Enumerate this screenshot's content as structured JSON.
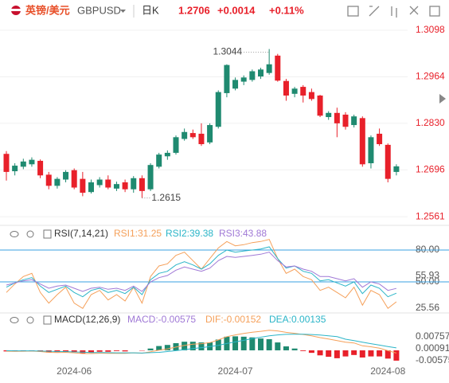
{
  "header": {
    "pair_cn": "英镑/美元",
    "symbol": "GBPUSD",
    "period": "日K",
    "price": "1.2706",
    "change": "+0.0014",
    "change_pct": "+0.11%"
  },
  "chart_data": [
    {
      "type": "candlestick",
      "up_color": "#1f8a70",
      "down_color": "#e8202a",
      "grid": true,
      "categories": [
        null,
        null,
        null,
        null,
        null,
        null,
        null,
        null,
        "2024-06",
        null,
        null,
        null,
        null,
        null,
        null,
        null,
        null,
        null,
        null,
        null,
        null,
        null,
        null,
        null,
        null,
        null,
        null,
        "2024-07",
        null,
        null,
        null,
        null,
        null,
        null,
        null,
        null,
        null,
        null,
        null,
        null,
        null,
        null,
        null,
        null,
        null,
        "2024-08",
        null
      ],
      "open": [
        1.2742,
        1.2692,
        1.2705,
        1.2712,
        1.2722,
        1.2682,
        1.265,
        1.2668,
        1.2695,
        1.267,
        1.2632,
        1.2652,
        1.2668,
        1.2642,
        1.266,
        1.264,
        1.2672,
        1.264,
        1.2705,
        1.2735,
        1.2745,
        1.2785,
        1.2802,
        1.28,
        1.2775,
        1.282,
        1.2917,
        1.293,
        1.295,
        1.2955,
        1.2965,
        1.2975,
        1.3025,
        1.2952,
        1.2915,
        1.2935,
        1.292,
        1.291,
        1.2848,
        1.286,
        1.2855,
        1.2825,
        1.2845,
        1.2715,
        1.28,
        1.2768,
        1.269
      ],
      "high": [
        1.275,
        1.2715,
        1.2728,
        1.2732,
        1.2726,
        1.269,
        1.2675,
        1.2695,
        1.27,
        1.269,
        1.2668,
        1.2675,
        1.268,
        1.2662,
        1.2668,
        1.2678,
        1.268,
        1.2715,
        1.2745,
        1.2752,
        1.2795,
        1.2815,
        1.2812,
        1.283,
        1.283,
        1.2925,
        1.3,
        1.2962,
        1.2968,
        1.2985,
        1.299,
        1.3044,
        1.303,
        1.2958,
        1.2935,
        1.294,
        1.293,
        1.2912,
        1.2865,
        1.2875,
        1.2862,
        1.2855,
        1.285,
        1.2795,
        1.2815,
        1.2772,
        1.2712
      ],
      "low": [
        1.2665,
        1.268,
        1.2698,
        1.2705,
        1.2672,
        1.264,
        1.2642,
        1.266,
        1.264,
        1.262,
        1.2628,
        1.2645,
        1.264,
        1.2635,
        1.2632,
        1.263,
        1.2615,
        1.2635,
        1.27,
        1.2725,
        1.274,
        1.278,
        1.2785,
        1.2765,
        1.277,
        1.2815,
        1.2905,
        1.2925,
        1.294,
        1.295,
        1.2958,
        1.297,
        1.295,
        1.2895,
        1.2905,
        1.289,
        1.2895,
        1.2848,
        1.284,
        1.279,
        1.2812,
        1.2818,
        1.2705,
        1.27,
        1.2765,
        1.266,
        1.268
      ],
      "close": [
        1.269,
        1.2708,
        1.272,
        1.2725,
        1.268,
        1.265,
        1.267,
        1.269,
        1.2645,
        1.263,
        1.266,
        1.2668,
        1.2645,
        1.2655,
        1.264,
        1.2672,
        1.2635,
        1.271,
        1.274,
        1.2745,
        1.279,
        1.2805,
        1.279,
        1.277,
        1.2825,
        1.292,
        1.2998,
        1.2955,
        1.2962,
        1.298,
        1.2985,
        1.3,
        1.2953,
        1.291,
        1.293,
        1.291,
        1.29,
        1.2852,
        1.286,
        1.283,
        1.282,
        1.285,
        1.2712,
        1.279,
        1.277,
        1.267,
        1.2706
      ],
      "ylim": [
        1.2543,
        1.3121
      ],
      "yticks": [
        1.3098,
        1.2964,
        {
          "value": 1.283,
          "label": "1.2830"
        },
        1.2696,
        1.2561
      ]
    },
    {
      "type": "line",
      "title": "RSI(7,14,21)",
      "grid": false,
      "hlines": [
        80,
        50
      ],
      "hline_color": "#3aa0e0",
      "series": [
        {
          "name": "RSI1:31.25",
          "color": "#f5a05a",
          "values": [
            40,
            48,
            55,
            58,
            40,
            30,
            38,
            45,
            30,
            25,
            38,
            42,
            33,
            38,
            32,
            45,
            30,
            55,
            65,
            67,
            75,
            78,
            70,
            62,
            72,
            82,
            88,
            84,
            85,
            87,
            88,
            90,
            72,
            58,
            62,
            55,
            52,
            42,
            45,
            40,
            35,
            45,
            28,
            42,
            38,
            25,
            31.25
          ]
        },
        {
          "name": "RSI2:39.38",
          "color": "#2bb5c8",
          "values": [
            45,
            49,
            52,
            54,
            46,
            40,
            43,
            46,
            40,
            36,
            42,
            44,
            40,
            42,
            39,
            45,
            38,
            52,
            58,
            60,
            66,
            69,
            66,
            62,
            67,
            75,
            80,
            78,
            79,
            80,
            81,
            83,
            72,
            63,
            65,
            60,
            58,
            51,
            52,
            49,
            46,
            50,
            39,
            47,
            44,
            36,
            39.38
          ]
        },
        {
          "name": "RSI3:43.88",
          "color": "#a079d6",
          "values": [
            47,
            49,
            51,
            52,
            48,
            44,
            46,
            47,
            44,
            41,
            44,
            45,
            43,
            44,
            42,
            46,
            41,
            50,
            54,
            56,
            61,
            64,
            62,
            60,
            63,
            70,
            74,
            73,
            74,
            75,
            76,
            78,
            70,
            64,
            65,
            62,
            60,
            55,
            55,
            53,
            51,
            53,
            45,
            50,
            48,
            42,
            43.88
          ]
        }
      ],
      "ylim": [
        21.5,
        90.5
      ],
      "yticks": [
        {
          "value": 80,
          "label": "80.00"
        },
        55.93,
        {
          "value": 50,
          "label": "50.00"
        },
        25.56
      ]
    },
    {
      "type": "macd",
      "title": "MACD(12,26,9)",
      "grid": false,
      "up_color": "#1f8a70",
      "down_color": "#e8202a",
      "series": [
        {
          "name": "MACD:-0.00575",
          "color": "#a079d6",
          "values": [
            -0.0006,
            -0.0006,
            -0.0004,
            -0.0002,
            -0.0006,
            -0.0012,
            -0.001,
            -0.0008,
            -0.001,
            -0.0016,
            -0.0012,
            -0.0008,
            -0.0008,
            -0.0004,
            -0.0006,
            0,
            -0.0002,
            0.001,
            0.0024,
            0.003,
            0.004,
            0.0048,
            0.0048,
            0.0044,
            0.0044,
            0.006,
            0.0076,
            0.0078,
            0.0076,
            0.0072,
            0.0066,
            0.0062,
            0.0044,
            0.0022,
            0.001,
            -0.0004,
            -0.0014,
            -0.0028,
            -0.0036,
            -0.0044,
            -0.0034,
            -0.0026,
            -0.004,
            -0.0034,
            -0.0034,
            -0.0046,
            -0.00575
          ]
        },
        {
          "name": "DIF:-0.00152",
          "color": "#f5a05a",
          "values": [
            -0.0005,
            -0.0006,
            -0.0005,
            -0.0004,
            -0.0007,
            -0.0011,
            -0.0012,
            -0.0011,
            -0.0014,
            -0.0018,
            -0.0018,
            -0.0016,
            -0.0017,
            -0.0016,
            -0.0017,
            -0.0014,
            -0.0016,
            -0.0008,
            0.0001,
            0.0008,
            0.0018,
            0.0028,
            0.0034,
            0.0037,
            0.0043,
            0.0058,
            0.0076,
            0.0086,
            0.0094,
            0.0101,
            0.0106,
            0.0112,
            0.0108,
            0.01,
            0.0095,
            0.0088,
            0.0081,
            0.0071,
            0.0063,
            0.0054,
            0.0045,
            0.0041,
            0.0025,
            0.002,
            0.0012,
            -0.0002,
            -0.00152
          ]
        },
        {
          "name": "DEA:0.00135",
          "color": "#2bb5c8",
          "values": [
            -0.0002,
            -0.0003,
            -0.0003,
            -0.0003,
            -0.0004,
            -0.0005,
            -0.0007,
            -0.0007,
            -0.0009,
            -0.001,
            -0.0012,
            -0.0012,
            -0.0013,
            -0.0014,
            -0.0014,
            -0.0014,
            -0.0015,
            -0.0013,
            -0.0011,
            -0.0007,
            -0.0002,
            0.0004,
            0.001,
            0.0015,
            0.0021,
            0.0028,
            0.0038,
            0.0047,
            0.0056,
            0.0065,
            0.0073,
            0.0081,
            0.0086,
            0.0089,
            0.009,
            0.009,
            0.0088,
            0.0085,
            0.0081,
            0.0076,
            0.0062,
            0.0054,
            0.0045,
            0.0037,
            0.0029,
            0.0021,
            0.00135
          ]
        }
      ],
      "ylim": [
        -0.008,
        0.0133
      ],
      "yticks": [
        0.00757,
        0.00091,
        -0.00575
      ]
    }
  ]
}
